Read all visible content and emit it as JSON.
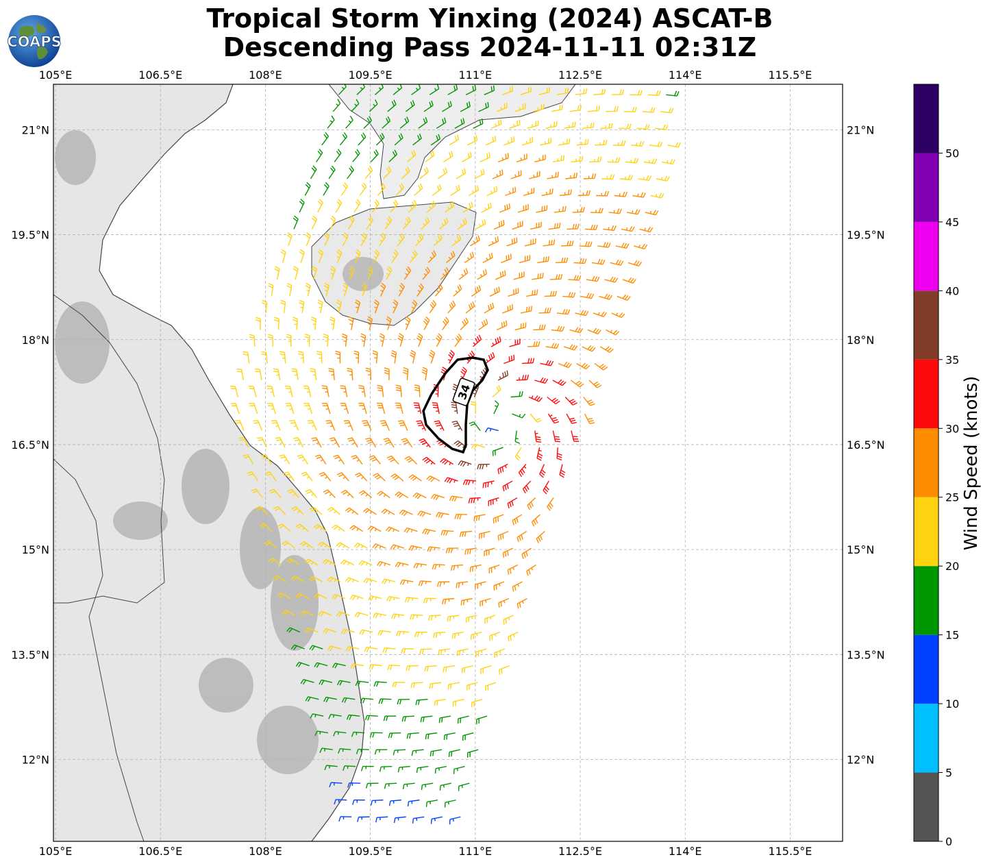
{
  "title": {
    "line1": "Tropical Storm Yinxing (2024) ASCAT-B",
    "line2": "Descending Pass 2024-11-11 02:31Z"
  },
  "logo": {
    "text": "COAPS",
    "icon": "globe-icon"
  },
  "map": {
    "lon_range": [
      104.97,
      116.25
    ],
    "lat_range": [
      10.83,
      21.65
    ],
    "lon_ticks": [
      "105°E",
      "106.5°E",
      "108°E",
      "109.5°E",
      "111°E",
      "112.5°E",
      "114°E",
      "115.5°E"
    ],
    "lat_ticks": [
      "21°N",
      "19.5°N",
      "18°N",
      "16.5°N",
      "15°N",
      "13.5°N",
      "12°N"
    ],
    "contour_label": "34",
    "contour_value_knots": 34,
    "storm_center": {
      "lon": 111.4,
      "lat": 16.8
    },
    "swath_edges": {
      "west": [
        [
          109.0,
          21.6
        ],
        [
          107.5,
          17.1
        ],
        [
          109.2,
          11.0
        ]
      ],
      "east": [
        [
          114.0,
          21.6
        ],
        [
          112.6,
          17.0
        ],
        [
          110.8,
          11.0
        ]
      ]
    }
  },
  "colorbar": {
    "label": "Wind Speed (knots)",
    "tick_labels": [
      "0",
      "5",
      "10",
      "15",
      "20",
      "25",
      "30",
      "35",
      "40",
      "45",
      "50"
    ],
    "bins": [
      {
        "from": 0,
        "to": 5,
        "color": "#555555"
      },
      {
        "from": 5,
        "to": 10,
        "color": "#00bfff"
      },
      {
        "from": 10,
        "to": 15,
        "color": "#0040ff"
      },
      {
        "from": 15,
        "to": 20,
        "color": "#009600"
      },
      {
        "from": 20,
        "to": 25,
        "color": "#ffd30f"
      },
      {
        "from": 25,
        "to": 30,
        "color": "#ff8c00"
      },
      {
        "from": 30,
        "to": 35,
        "color": "#ff0a0a"
      },
      {
        "from": 35,
        "to": 40,
        "color": "#823c28"
      },
      {
        "from": 40,
        "to": 45,
        "color": "#f000f0"
      },
      {
        "from": 45,
        "to": 50,
        "color": "#8200b4"
      },
      {
        "from": 50,
        "to": 55,
        "color": "#2d0064"
      }
    ]
  },
  "colors": {
    "grid": "#b0b0b0",
    "coast": "#444444",
    "contour": "#000000"
  }
}
